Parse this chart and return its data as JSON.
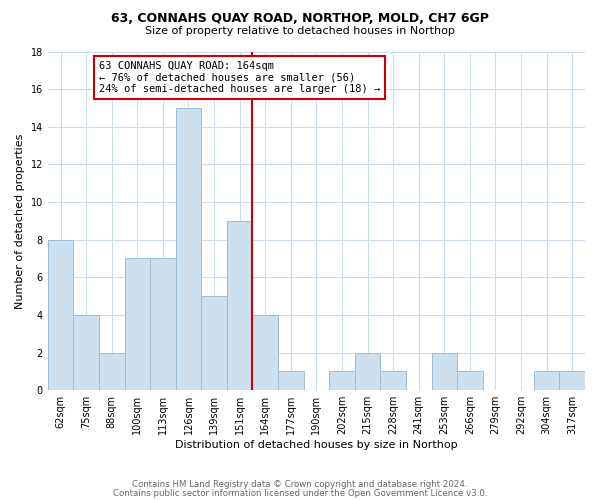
{
  "title": "63, CONNAHS QUAY ROAD, NORTHOP, MOLD, CH7 6GP",
  "subtitle": "Size of property relative to detached houses in Northop",
  "xlabel": "Distribution of detached houses by size in Northop",
  "ylabel": "Number of detached properties",
  "bar_labels": [
    "62sqm",
    "75sqm",
    "88sqm",
    "100sqm",
    "113sqm",
    "126sqm",
    "139sqm",
    "151sqm",
    "164sqm",
    "177sqm",
    "190sqm",
    "202sqm",
    "215sqm",
    "228sqm",
    "241sqm",
    "253sqm",
    "266sqm",
    "279sqm",
    "292sqm",
    "304sqm",
    "317sqm"
  ],
  "bar_values": [
    8,
    4,
    2,
    7,
    7,
    15,
    5,
    9,
    4,
    1,
    0,
    1,
    2,
    1,
    0,
    2,
    1,
    0,
    0,
    1,
    1
  ],
  "bar_color": "#cce0f0",
  "bar_edge_color": "#9bbdd6",
  "highlight_line_color": "#cc0000",
  "highlight_line_index": 8,
  "annotation_text": "63 CONNAHS QUAY ROAD: 164sqm\n← 76% of detached houses are smaller (56)\n24% of semi-detached houses are larger (18) →",
  "annotation_box_edge_color": "#cc0000",
  "annotation_box_face_color": "#ffffff",
  "ylim": [
    0,
    18
  ],
  "yticks": [
    0,
    2,
    4,
    6,
    8,
    10,
    12,
    14,
    16,
    18
  ],
  "footnote1": "Contains HM Land Registry data © Crown copyright and database right 2024.",
  "footnote2": "Contains public sector information licensed under the Open Government Licence v3.0.",
  "background_color": "#ffffff",
  "grid_color": "#ccddee",
  "title_fontsize": 9,
  "subtitle_fontsize": 8,
  "xlabel_fontsize": 8,
  "ylabel_fontsize": 8,
  "tick_fontsize": 7,
  "annot_fontsize": 7.5
}
